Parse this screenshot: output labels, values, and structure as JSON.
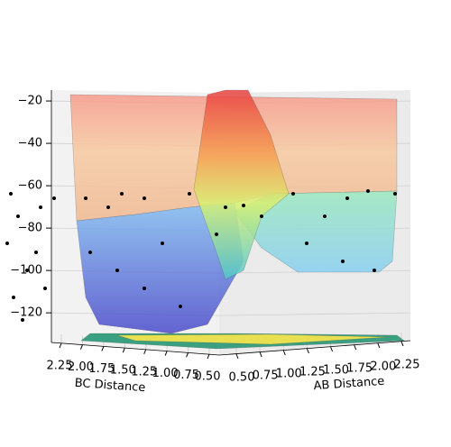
{
  "chart_data": {
    "type": "surface3d",
    "xlabel": "AB Distance",
    "ylabel": "BC Distance",
    "xlim": [
      0.5,
      2.25
    ],
    "xticks": [
      {
        "value": 0.5,
        "label": "0.50"
      },
      {
        "value": 0.75,
        "label": "0.75"
      },
      {
        "value": 1.0,
        "label": "1.00"
      },
      {
        "value": 1.25,
        "label": "1.25"
      },
      {
        "value": 1.5,
        "label": "1.50"
      },
      {
        "value": 1.75,
        "label": "1.75"
      },
      {
        "value": 2.0,
        "label": "2.00"
      },
      {
        "value": 2.25,
        "label": "2.25"
      }
    ],
    "ylim": [
      0.5,
      2.25
    ],
    "yticks": [
      {
        "value": 0.5,
        "label": "0.50"
      },
      {
        "value": 0.75,
        "label": "0.75"
      },
      {
        "value": 1.0,
        "label": "1.00"
      },
      {
        "value": 1.25,
        "label": "1.25"
      },
      {
        "value": 1.5,
        "label": "1.50"
      },
      {
        "value": 1.75,
        "label": "1.75"
      },
      {
        "value": 2.0,
        "label": "2.00"
      },
      {
        "value": 2.25,
        "label": "2.25"
      }
    ],
    "zlim": [
      -131,
      -17
    ],
    "zticks": [
      {
        "value": -20,
        "label": "−20"
      },
      {
        "value": -40,
        "label": "−40"
      },
      {
        "value": -60,
        "label": "−60"
      },
      {
        "value": -80,
        "label": "−80"
      },
      {
        "value": -100,
        "label": "−100"
      },
      {
        "value": -120,
        "label": "−120"
      }
    ],
    "grid": true
  }
}
